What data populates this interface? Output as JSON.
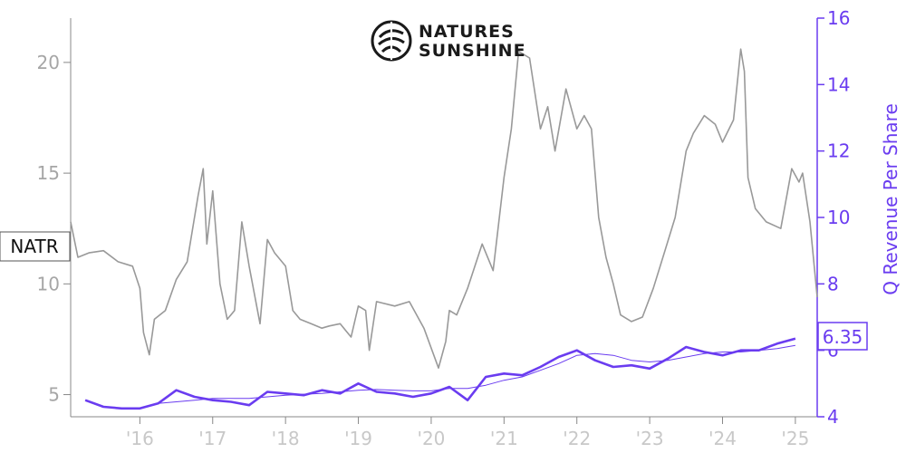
{
  "logo": {
    "line1": "NATURES",
    "line2": "SUNSHINE",
    "icon": "leaf-cluster-icon"
  },
  "colors": {
    "price": "#999999",
    "revenue": "#6a3cf0",
    "axis_left": "#a6a6a6",
    "axis_x": "#c8c8c8",
    "frame": "#888888"
  },
  "chart_data": {
    "type": "line",
    "title": "",
    "xlabel": "",
    "x_tick_labels": [
      "'16",
      "'17",
      "'18",
      "'19",
      "'20",
      "'21",
      "'22",
      "'23",
      "'24",
      "'25"
    ],
    "x_tick_values": [
      2016,
      2017,
      2018,
      2019,
      2020,
      2021,
      2022,
      2023,
      2024,
      2025
    ],
    "xlim": [
      2015.05,
      2025.3
    ],
    "left_axis": {
      "label": "",
      "ylim": [
        4.0,
        22.0
      ],
      "ticks": [
        5,
        10,
        15,
        20
      ]
    },
    "right_axis": {
      "label": "Q Revenue Per Share",
      "ylim": [
        4.0,
        16.0
      ],
      "ticks": [
        4,
        6,
        8,
        10,
        12,
        14,
        16
      ]
    },
    "price_tag": "NATR",
    "last_value_tag": "6.35",
    "series": [
      {
        "name": "NATR",
        "axis": "left",
        "x": [
          2015.05,
          2015.15,
          2015.3,
          2015.5,
          2015.7,
          2015.9,
          2016.0,
          2016.05,
          2016.13,
          2016.2,
          2016.35,
          2016.5,
          2016.65,
          2016.8,
          2016.87,
          2016.92,
          2017.0,
          2017.1,
          2017.2,
          2017.3,
          2017.4,
          2017.5,
          2017.65,
          2017.75,
          2017.85,
          2018.0,
          2018.1,
          2018.2,
          2018.35,
          2018.5,
          2018.6,
          2018.75,
          2018.9,
          2019.0,
          2019.1,
          2019.15,
          2019.25,
          2019.5,
          2019.7,
          2019.9,
          2020.1,
          2020.2,
          2020.25,
          2020.35,
          2020.5,
          2020.7,
          2020.85,
          2021.0,
          2021.1,
          2021.2,
          2021.35,
          2021.5,
          2021.6,
          2021.7,
          2021.85,
          2022.0,
          2022.1,
          2022.2,
          2022.3,
          2022.4,
          2022.5,
          2022.6,
          2022.75,
          2022.9,
          2023.05,
          2023.2,
          2023.35,
          2023.5,
          2023.6,
          2023.75,
          2023.9,
          2024.0,
          2024.15,
          2024.25,
          2024.3,
          2024.35,
          2024.45,
          2024.6,
          2024.8,
          2024.95,
          2025.05,
          2025.1,
          2025.2,
          2025.3
        ],
        "values": [
          12.8,
          11.2,
          11.4,
          11.5,
          11.0,
          10.8,
          9.8,
          7.8,
          6.8,
          8.4,
          8.8,
          10.2,
          11.0,
          14.0,
          15.2,
          11.8,
          14.2,
          10.0,
          8.4,
          8.8,
          12.8,
          10.8,
          8.2,
          12.0,
          11.4,
          10.8,
          8.8,
          8.4,
          8.2,
          8.0,
          8.1,
          8.2,
          7.6,
          9.0,
          8.8,
          7.0,
          9.2,
          9.0,
          9.2,
          8.0,
          6.2,
          7.4,
          8.8,
          8.6,
          9.8,
          11.8,
          10.6,
          14.8,
          17.0,
          20.5,
          20.2,
          17.0,
          18.0,
          16.0,
          18.8,
          17.0,
          17.6,
          17.0,
          13.0,
          11.2,
          10.0,
          8.6,
          8.3,
          8.5,
          9.8,
          11.4,
          13.0,
          16.0,
          16.8,
          17.6,
          17.2,
          16.4,
          17.4,
          20.6,
          19.6,
          14.8,
          13.4,
          12.8,
          12.5,
          15.2,
          14.6,
          15.0,
          12.8,
          9.4
        ]
      },
      {
        "name": "Q Revenue Per Share",
        "axis": "right",
        "x": [
          2015.25,
          2015.5,
          2015.75,
          2016.0,
          2016.25,
          2016.5,
          2016.75,
          2017.0,
          2017.25,
          2017.5,
          2017.75,
          2018.0,
          2018.25,
          2018.5,
          2018.75,
          2019.0,
          2019.25,
          2019.5,
          2019.75,
          2020.0,
          2020.25,
          2020.5,
          2020.75,
          2021.0,
          2021.25,
          2021.5,
          2021.75,
          2022.0,
          2022.25,
          2022.5,
          2022.75,
          2023.0,
          2023.25,
          2023.5,
          2023.75,
          2024.0,
          2024.25,
          2024.5,
          2024.75,
          2025.0
        ],
        "values": [
          4.5,
          4.3,
          4.25,
          4.25,
          4.4,
          4.8,
          4.6,
          4.5,
          4.45,
          4.35,
          4.75,
          4.7,
          4.65,
          4.8,
          4.7,
          5.0,
          4.75,
          4.7,
          4.6,
          4.7,
          4.9,
          4.5,
          5.2,
          5.3,
          5.25,
          5.5,
          5.8,
          6.0,
          5.7,
          5.5,
          5.55,
          5.45,
          5.75,
          6.1,
          5.95,
          5.85,
          6.0,
          6.0,
          6.2,
          6.35
        ]
      },
      {
        "name": "Q Revenue Per Share (trend)",
        "axis": "right",
        "x": [
          2016.25,
          2016.5,
          2016.75,
          2017.0,
          2017.25,
          2017.5,
          2017.75,
          2018.0,
          2018.25,
          2018.5,
          2018.75,
          2019.0,
          2019.25,
          2019.5,
          2019.75,
          2020.0,
          2020.25,
          2020.5,
          2020.75,
          2021.0,
          2021.25,
          2021.5,
          2021.75,
          2022.0,
          2022.25,
          2022.5,
          2022.75,
          2023.0,
          2023.25,
          2023.5,
          2023.75,
          2024.0,
          2024.25,
          2024.5,
          2024.75,
          2025.0
        ],
        "values": [
          4.4,
          4.45,
          4.5,
          4.55,
          4.55,
          4.55,
          4.6,
          4.65,
          4.68,
          4.7,
          4.75,
          4.8,
          4.82,
          4.8,
          4.78,
          4.78,
          4.85,
          4.85,
          4.95,
          5.1,
          5.2,
          5.4,
          5.6,
          5.85,
          5.9,
          5.85,
          5.7,
          5.65,
          5.7,
          5.8,
          5.9,
          5.95,
          5.95,
          6.0,
          6.05,
          6.15
        ]
      }
    ]
  }
}
